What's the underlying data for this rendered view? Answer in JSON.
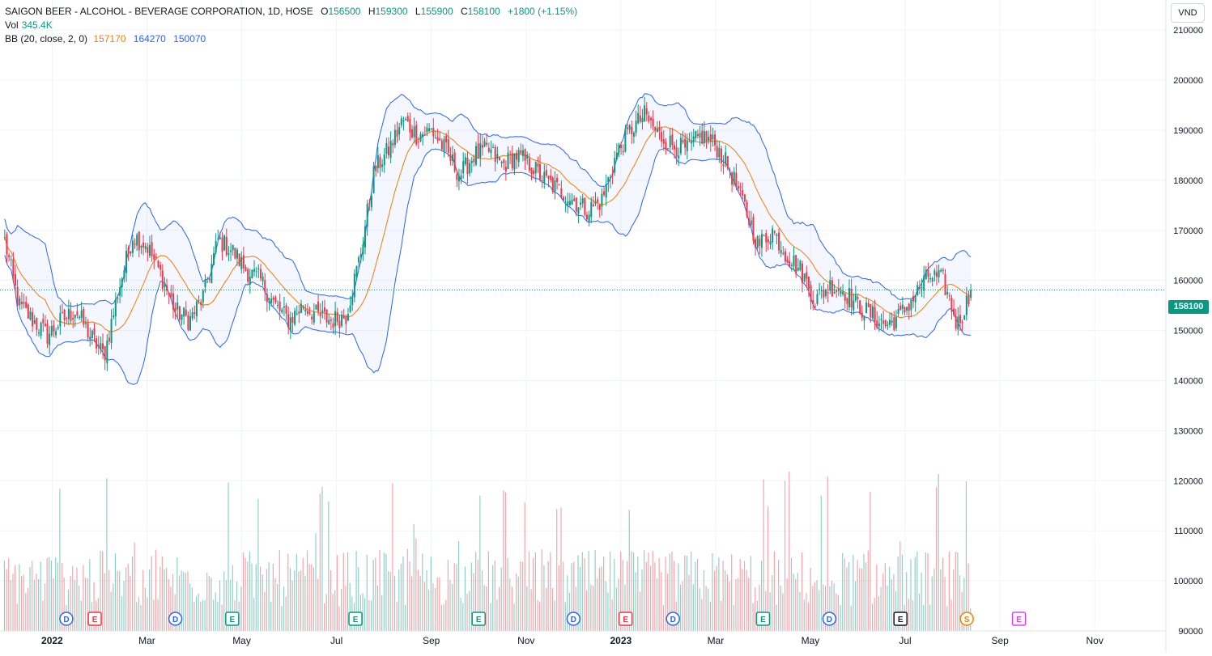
{
  "header": {
    "title": "SAIGON BEER - ALCOHOL - BEVERAGE CORPORATION, 1D, HOSE",
    "open_label": "O",
    "open": "156500",
    "high_label": "H",
    "high": "159300",
    "low_label": "L",
    "low": "155900",
    "close_label": "C",
    "close": "158100",
    "change": "+1800 (+1.15%)",
    "vol_label": "Vol",
    "vol": "345.4K",
    "bb_label": "BB (20, close, 2, 0)",
    "bb_basis": "157170",
    "bb_upper": "164270",
    "bb_lower": "150070"
  },
  "currency": "VND",
  "last_price_tag": "158100",
  "colors": {
    "up": "#089981",
    "down": "#f23645",
    "basis": "#f57c00",
    "band": "#2962ff",
    "band_fill": "#2962ff"
  },
  "events": [
    {
      "letter": "D",
      "month_index": 1.3
    },
    {
      "letter": "E",
      "month_index": 1.9
    },
    {
      "letter": "D",
      "month_index": 3.6
    },
    {
      "letter": "E",
      "month_index": 4.8
    },
    {
      "letter": "E",
      "month_index": 7.4
    },
    {
      "letter": "E",
      "month_index": 10.0
    },
    {
      "letter": "D",
      "month_index": 12.0
    },
    {
      "letter": "E",
      "month_index": 13.1
    },
    {
      "letter": "D",
      "month_index": 14.1
    },
    {
      "letter": "E",
      "month_index": 16.0
    },
    {
      "letter": "D",
      "month_index": 17.4
    },
    {
      "letter": "E",
      "month_index": 18.9
    },
    {
      "letter": "S",
      "month_index": 20.3
    },
    {
      "letter": "E",
      "month_index": 21.4
    }
  ],
  "chart_data": {
    "type": "candlestick",
    "ylim": [
      90000,
      216000
    ],
    "y_ticks": [
      90000,
      100000,
      110000,
      120000,
      130000,
      140000,
      150000,
      160000,
      170000,
      180000,
      190000,
      200000,
      210000
    ],
    "x_ticks": [
      {
        "label": "2022",
        "month_index": 1
      },
      {
        "label": "Mar",
        "month_index": 3
      },
      {
        "label": "May",
        "month_index": 5
      },
      {
        "label": "Jul",
        "month_index": 7
      },
      {
        "label": "Sep",
        "month_index": 9
      },
      {
        "label": "Nov",
        "month_index": 11
      },
      {
        "label": "2023",
        "month_index": 13
      },
      {
        "label": "Mar",
        "month_index": 15
      },
      {
        "label": "May",
        "month_index": 17
      },
      {
        "label": "Jul",
        "month_index": 19
      },
      {
        "label": "Sep",
        "month_index": 21
      },
      {
        "label": "Nov",
        "month_index": 23
      }
    ],
    "x_range_month_index": [
      -0.1,
      24.5
    ],
    "close_path": [
      [
        0.0,
        168000
      ],
      [
        0.3,
        155000
      ],
      [
        0.6,
        152000
      ],
      [
        0.9,
        149000
      ],
      [
        1.2,
        152000
      ],
      [
        1.5,
        154000
      ],
      [
        1.8,
        149000
      ],
      [
        2.1,
        145000
      ],
      [
        2.4,
        158000
      ],
      [
        2.7,
        169000
      ],
      [
        3.0,
        167000
      ],
      [
        3.3,
        161000
      ],
      [
        3.6,
        154000
      ],
      [
        3.9,
        152000
      ],
      [
        4.2,
        157000
      ],
      [
        4.5,
        168000
      ],
      [
        4.8,
        166000
      ],
      [
        5.1,
        162000
      ],
      [
        5.4,
        160000
      ],
      [
        5.7,
        155000
      ],
      [
        6.0,
        152000
      ],
      [
        6.3,
        155000
      ],
      [
        6.6,
        153000
      ],
      [
        6.9,
        152000
      ],
      [
        7.2,
        153000
      ],
      [
        7.5,
        165000
      ],
      [
        7.8,
        182000
      ],
      [
        8.1,
        186000
      ],
      [
        8.4,
        192000
      ],
      [
        8.7,
        189000
      ],
      [
        9.0,
        190000
      ],
      [
        9.3,
        186000
      ],
      [
        9.6,
        181000
      ],
      [
        9.9,
        185000
      ],
      [
        10.2,
        186000
      ],
      [
        10.5,
        183000
      ],
      [
        10.8,
        185000
      ],
      [
        11.1,
        183000
      ],
      [
        11.4,
        180000
      ],
      [
        11.7,
        178000
      ],
      [
        12.0,
        176000
      ],
      [
        12.3,
        174000
      ],
      [
        12.6,
        176000
      ],
      [
        12.9,
        185000
      ],
      [
        13.2,
        190000
      ],
      [
        13.5,
        193000
      ],
      [
        13.8,
        189000
      ],
      [
        14.1,
        187000
      ],
      [
        14.4,
        186000
      ],
      [
        14.7,
        189000
      ],
      [
        15.0,
        187000
      ],
      [
        15.3,
        182000
      ],
      [
        15.6,
        175000
      ],
      [
        15.9,
        167000
      ],
      [
        16.2,
        170000
      ],
      [
        16.5,
        165000
      ],
      [
        16.8,
        162000
      ],
      [
        17.1,
        156000
      ],
      [
        17.4,
        159000
      ],
      [
        17.7,
        158000
      ],
      [
        18.0,
        155000
      ],
      [
        18.3,
        153000
      ],
      [
        18.6,
        151000
      ],
      [
        18.9,
        153000
      ],
      [
        19.2,
        157000
      ],
      [
        19.5,
        161000
      ],
      [
        19.8,
        160000
      ],
      [
        20.1,
        151000
      ],
      [
        20.4,
        158100
      ]
    ],
    "bb": {
      "period": 20,
      "std_mult": 2,
      "basis_last": 157170,
      "upper_last": 164270,
      "lower_last": 150070
    },
    "volume": {
      "last": "345.4K",
      "max_bar_value": 2500000
    }
  }
}
